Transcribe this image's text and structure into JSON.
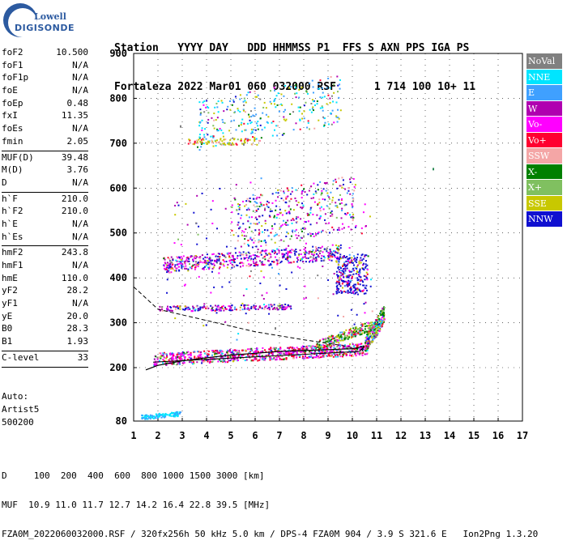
{
  "logo": {
    "line1": "Lowell",
    "line2": "DIGISONDE"
  },
  "header": {
    "line1": "Station   YYYY DAY   DDD HHMMSS P1  FFS S AXN PPS IGA PS",
    "line2": "Fortaleza 2022 Mar01 060 032000 RSF      1 714 100 10+ 11"
  },
  "params": [
    {
      "name": "foF2",
      "value": "10.500"
    },
    {
      "name": "foF1",
      "value": "N/A"
    },
    {
      "name": "foF1p",
      "value": "N/A"
    },
    {
      "name": "foE",
      "value": "N/A"
    },
    {
      "name": "foEp",
      "value": "0.48"
    },
    {
      "name": "fxI",
      "value": "11.35"
    },
    {
      "name": "foEs",
      "value": "N/A"
    },
    {
      "name": "fmin",
      "value": "2.05"
    },
    {
      "sep": true
    },
    {
      "name": "MUF(D)",
      "value": "39.48"
    },
    {
      "name": "M(D)",
      "value": "3.76"
    },
    {
      "name": "D",
      "value": "N/A"
    },
    {
      "sep": true
    },
    {
      "name": "h`F",
      "value": "210.0"
    },
    {
      "name": "h`F2",
      "value": "210.0"
    },
    {
      "name": "h`E",
      "value": "N/A"
    },
    {
      "name": "h`Es",
      "value": "N/A"
    },
    {
      "sep": true
    },
    {
      "name": "hmF2",
      "value": "243.8"
    },
    {
      "name": "hmF1",
      "value": "N/A"
    },
    {
      "name": "hmE",
      "value": "110.0"
    },
    {
      "name": "yF2",
      "value": "28.2"
    },
    {
      "name": "yF1",
      "value": "N/A"
    },
    {
      "name": "yE",
      "value": "20.0"
    },
    {
      "name": "B0",
      "value": "28.3"
    },
    {
      "name": "B1",
      "value": "1.93"
    },
    {
      "sep": true
    },
    {
      "name": "C-level",
      "value": "33"
    },
    {
      "sep": true
    }
  ],
  "auto": [
    "Auto:",
    "Artist5",
    "500200"
  ],
  "legend": [
    {
      "label": "NoVal",
      "color": "#808080"
    },
    {
      "label": "NNE",
      "color": "#00e5ff"
    },
    {
      "label": "E",
      "color": "#3fa0ff"
    },
    {
      "label": "W",
      "color": "#b000b0"
    },
    {
      "label": "Vo-",
      "color": "#ff00ff"
    },
    {
      "label": "Vo+",
      "color": "#ff0030"
    },
    {
      "label": "SSW",
      "color": "#f4a6a6"
    },
    {
      "label": "X-",
      "color": "#008000"
    },
    {
      "label": "X+",
      "color": "#80c060"
    },
    {
      "label": "SSE",
      "color": "#c8c800"
    },
    {
      "label": "NNW",
      "color": "#1010d0"
    }
  ],
  "footer": {
    "line1": "D     100  200  400  600  800 1000 1500 3000 [km]",
    "line2": "MUF  10.9 11.0 11.7 12.7 14.2 16.4 22.8 39.5 [MHz]",
    "line3": "FZA0M_2022060032000.RSF / 320fx256h 50 kHz 5.0 km / DPS-4 FZA0M 904 / 3.9 S 321.6 E   Ion2Png 1.3.20"
  },
  "chart_data": {
    "type": "scatter",
    "xlim": [
      1,
      17
    ],
    "ylim": [
      80,
      900
    ],
    "xticks": [
      1,
      2,
      3,
      4,
      5,
      6,
      7,
      8,
      9,
      10,
      11,
      12,
      13,
      14,
      15,
      16,
      17
    ],
    "yticks": [
      80,
      200,
      300,
      400,
      500,
      600,
      700,
      800,
      900
    ],
    "grid": true,
    "series": [
      {
        "name": "trace",
        "values_x": [
          1.5,
          2.0,
          3.0,
          4.0,
          5.0,
          6.0,
          7.0,
          8.0,
          9.0,
          10.0,
          10.5
        ],
        "values_y": [
          195,
          205,
          215,
          222,
          228,
          232,
          236,
          238,
          240,
          242,
          248
        ]
      },
      {
        "name": "o-trace",
        "values_x": [
          1.7,
          2.5,
          3.5,
          4.5,
          5.5,
          6.5,
          7.5,
          8.5,
          9.5,
          10.3,
          10.8,
          11.1
        ],
        "values_y": [
          215,
          228,
          235,
          240,
          243,
          247,
          250,
          255,
          262,
          275,
          300,
          340
        ]
      },
      {
        "name": "NoVal",
        "values_x": [
          2.9,
          5.5,
          6.8,
          9.2,
          13.3
        ],
        "values_y": [
          740,
          700,
          290,
          255,
          645
        ]
      }
    ],
    "overlay_profile": {
      "x": [
        0.5,
        2.0,
        4.0,
        6.0,
        8.0,
        9.5,
        10.4,
        10.5
      ],
      "y": [
        380,
        330,
        305,
        280,
        262,
        250,
        240,
        230
      ]
    }
  }
}
